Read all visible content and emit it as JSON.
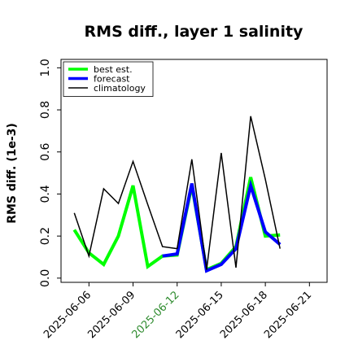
{
  "chart_data": {
    "type": "line",
    "title": "RMS diff., layer 1 salinity",
    "xlabel": "",
    "ylabel": "RMS diff. (1e-3)",
    "ylim": [
      -0.02,
      1.04
    ],
    "yticks": [
      "0.0",
      "0.2",
      "0.4",
      "0.6",
      "0.8",
      "1.0"
    ],
    "ytick_values": [
      0.0,
      0.2,
      0.4,
      0.6,
      0.8,
      1.0
    ],
    "xlim": [
      -0.9,
      17.2
    ],
    "xticks": [
      "2025-06-06",
      "2025-06-09",
      "2025-06-12",
      "2025-06-15",
      "2025-06-18",
      "2025-06-21"
    ],
    "xtick_values": [
      1,
      4,
      7,
      10,
      13,
      16
    ],
    "highlight_tick": "2025-06-12",
    "highlight_color": "#2e8b2e",
    "legend_position": "top-left",
    "grid": false,
    "x": [
      0,
      1,
      2,
      3,
      4,
      5,
      6,
      7,
      8,
      9,
      10,
      11,
      12,
      13,
      14
    ],
    "series": [
      {
        "name": "best est.",
        "color": "#00ff00",
        "width": 4,
        "x": [
          0,
          1,
          2,
          3,
          4,
          5,
          6,
          7,
          8,
          9,
          10,
          11,
          12,
          13,
          14
        ],
        "values": [
          0.23,
          0.12,
          0.065,
          0.2,
          0.44,
          0.055,
          0.105,
          0.11,
          0.44,
          0.04,
          0.07,
          0.15,
          0.48,
          0.2,
          0.205
        ]
      },
      {
        "name": "forecast",
        "color": "#0000ff",
        "width": 4,
        "x": [
          6,
          7,
          8,
          9,
          10,
          11,
          12,
          13,
          14
        ],
        "values": [
          0.105,
          0.115,
          0.45,
          0.035,
          0.065,
          0.14,
          0.44,
          0.22,
          0.16
        ]
      },
      {
        "name": "climatology",
        "color": "#000000",
        "width": 1.5,
        "x": [
          0,
          1,
          2,
          3,
          4,
          5,
          6,
          7,
          8,
          9,
          10,
          11,
          12,
          13,
          14
        ],
        "values": [
          0.31,
          0.105,
          0.425,
          0.355,
          0.555,
          0.35,
          0.15,
          0.14,
          0.565,
          0.04,
          0.595,
          0.05,
          0.77,
          0.47,
          0.14
        ]
      }
    ]
  }
}
